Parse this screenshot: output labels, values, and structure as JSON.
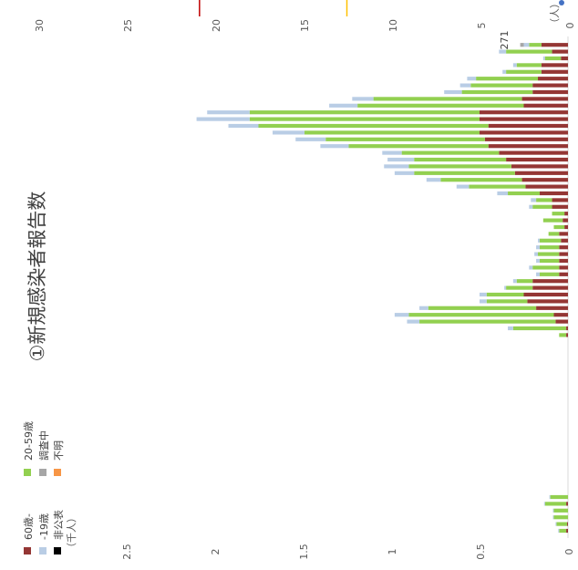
{
  "chart_data": {
    "type": "bar",
    "stacked": true,
    "title": "①新規感染者報告数",
    "unit_primary": "（千人）",
    "unit_secondary": "（人）",
    "primary_axis": {
      "ylim": [
        0,
        2.5
      ],
      "ticks": [
        "0",
        "0.5",
        "1",
        "1.5",
        "2",
        "2.5"
      ]
    },
    "secondary_axis": {
      "ylim": [
        0,
        30
      ],
      "ticks": [
        "0",
        "5",
        "10",
        "15",
        "20",
        "25",
        "30"
      ]
    },
    "legend": [
      "60歳-",
      "20-59歳",
      "-19歳",
      "調査中",
      "非公表",
      "不明"
    ],
    "colors": {
      "60歳-": "#943634",
      "20-59歳": "#92d050",
      "-19歳": "#b9cde5",
      "調査中": "#a6a6a6",
      "非公表": "#000000",
      "不明": "#f79646",
      "reference_25": "#c00000",
      "reference_15": "#ffc000",
      "marker": "#4472c4"
    },
    "reference_lines": [
      {
        "value": 25,
        "color": "#c00000"
      },
      {
        "value": 15,
        "color": "#ffc000"
      }
    ],
    "annotation": "271",
    "series": [
      {
        "name": "60歳-",
        "values": [
          0.01,
          0.005,
          0.0,
          0.0,
          0.01,
          0.0,
          0.0,
          0.0,
          0.0,
          0.0,
          0.0,
          0.0,
          0.0,
          0.0,
          0.0,
          0.0,
          0.0,
          0.0,
          0.0,
          0.0,
          0.0,
          0.0,
          0.0,
          0.0,
          0.0,
          0.0,
          0.0,
          0.0,
          0.0,
          0.01,
          0.01,
          0.07,
          0.08,
          0.18,
          0.23,
          0.25,
          0.2,
          0.2,
          0.05,
          0.05,
          0.05,
          0.05,
          0.05,
          0.04,
          0.05,
          0.02,
          0.03,
          0.02,
          0.09,
          0.09,
          0.16,
          0.24,
          0.26,
          0.3,
          0.32,
          0.35,
          0.39,
          0.45,
          0.47,
          0.5,
          0.45,
          0.5,
          0.5,
          0.25,
          0.26,
          0.2,
          0.2,
          0.17,
          0.15,
          0.15,
          0.04,
          0.09,
          0.15
        ]
      },
      {
        "name": "20-59歳",
        "values": [
          0.04,
          0.06,
          0.08,
          0.08,
          0.12,
          0.1,
          0.0,
          0.0,
          0.0,
          0.0,
          0.0,
          0.0,
          0.0,
          0.0,
          0.0,
          0.0,
          0.0,
          0.0,
          0.0,
          0.0,
          0.0,
          0.0,
          0.0,
          0.0,
          0.0,
          0.0,
          0.0,
          0.0,
          0.0,
          0.04,
          0.3,
          0.77,
          0.82,
          0.61,
          0.23,
          0.21,
          0.15,
          0.09,
          0.11,
          0.15,
          0.11,
          0.12,
          0.11,
          0.12,
          0.06,
          0.06,
          0.11,
          0.07,
          0.11,
          0.09,
          0.18,
          0.32,
          0.46,
          0.57,
          0.58,
          0.52,
          0.55,
          0.79,
          0.9,
          0.99,
          1.3,
          1.3,
          1.3,
          0.94,
          0.84,
          0.4,
          0.35,
          0.35,
          0.2,
          0.14,
          0.09,
          0.26,
          0.07
        ]
      },
      {
        "name": "-19歳",
        "values": [
          0.005,
          0.005,
          0.005,
          0.005,
          0.005,
          0.005,
          0.0,
          0.0,
          0.0,
          0.0,
          0.0,
          0.0,
          0.0,
          0.0,
          0.0,
          0.0,
          0.0,
          0.0,
          0.0,
          0.0,
          0.0,
          0.0,
          0.0,
          0.0,
          0.0,
          0.0,
          0.0,
          0.0,
          0.0,
          0.0,
          0.03,
          0.07,
          0.08,
          0.05,
          0.04,
          0.04,
          0.01,
          0.02,
          0.02,
          0.02,
          0.02,
          0.02,
          0.02,
          0.01,
          0.0,
          0.0,
          0.0,
          0.0,
          0.02,
          0.03,
          0.06,
          0.07,
          0.08,
          0.11,
          0.14,
          0.15,
          0.11,
          0.16,
          0.17,
          0.18,
          0.17,
          0.3,
          0.24,
          0.16,
          0.12,
          0.1,
          0.06,
          0.05,
          0.02,
          0.02,
          0.01,
          0.04,
          0.03
        ]
      },
      {
        "name": "調査中",
        "values": [
          0.0,
          0.0,
          0.0,
          0.0,
          0.0,
          0.0,
          0.0,
          0.0,
          0.0,
          0.0,
          0.0,
          0.0,
          0.0,
          0.0,
          0.0,
          0.0,
          0.0,
          0.0,
          0.0,
          0.0,
          0.0,
          0.0,
          0.0,
          0.0,
          0.0,
          0.0,
          0.0,
          0.0,
          0.0,
          0.0,
          0.0,
          0.0,
          0.0,
          0.0,
          0.0,
          0.0,
          0.0,
          0.0,
          0.0,
          0.0,
          0.0,
          0.0,
          0.0,
          0.0,
          0.0,
          0.0,
          0.0,
          0.0,
          0.0,
          0.0,
          0.0,
          0.0,
          0.0,
          0.0,
          0.0,
          0.0,
          0.0,
          0.0,
          0.0,
          0.0,
          0.0,
          0.0,
          0.0,
          0.0,
          0.0,
          0.0,
          0.0,
          0.0,
          0.0,
          0.0,
          0.0,
          0.0,
          0.02
        ]
      },
      {
        "name": "非公表",
        "values": [
          0,
          0,
          0,
          0,
          0,
          0,
          0,
          0,
          0,
          0,
          0,
          0,
          0,
          0,
          0,
          0,
          0,
          0,
          0,
          0,
          0,
          0,
          0,
          0,
          0,
          0,
          0,
          0,
          0,
          0,
          0,
          0,
          0,
          0,
          0,
          0,
          0,
          0,
          0,
          0,
          0,
          0,
          0,
          0,
          0,
          0,
          0,
          0,
          0,
          0,
          0,
          0,
          0,
          0,
          0,
          0,
          0,
          0,
          0,
          0,
          0,
          0,
          0,
          0,
          0,
          0,
          0,
          0,
          0,
          0,
          0,
          0,
          0
        ]
      },
      {
        "name": "不明",
        "values": [
          0,
          0,
          0,
          0,
          0,
          0,
          0,
          0,
          0,
          0,
          0,
          0,
          0,
          0,
          0,
          0,
          0,
          0,
          0,
          0,
          0,
          0,
          0,
          0,
          0,
          0,
          0,
          0,
          0,
          0,
          0,
          0,
          0,
          0,
          0,
          0,
          0,
          0,
          0,
          0,
          0,
          0,
          0,
          0,
          0,
          0,
          0,
          0,
          0,
          0,
          0,
          0,
          0,
          0,
          0,
          0,
          0,
          0,
          0,
          0,
          0,
          0,
          0,
          0,
          0,
          0,
          0,
          0,
          0,
          0,
          0,
          0,
          0
        ]
      }
    ]
  }
}
